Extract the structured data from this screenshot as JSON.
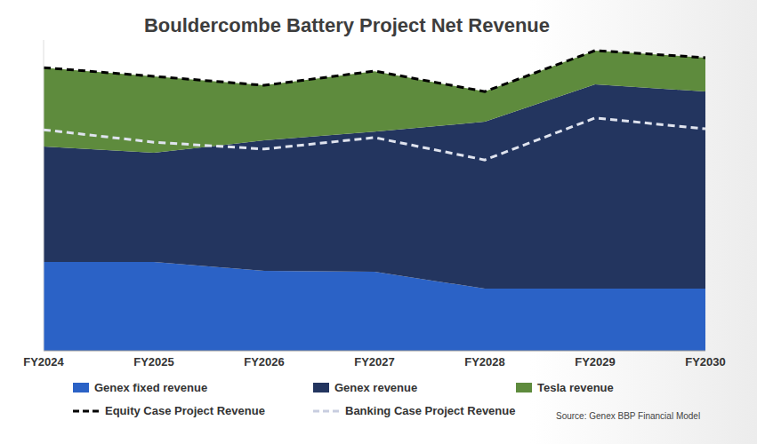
{
  "chart_data": {
    "type": "area",
    "title": "Bouldercombe Battery Project Net Revenue",
    "source": "Source: Genex BBP Financial Model",
    "categories": [
      "FY2024",
      "FY2025",
      "FY2026",
      "FY2027",
      "FY2028",
      "FY2029",
      "FY2030"
    ],
    "series": [
      {
        "name": "Genex fixed revenue",
        "type": "area",
        "color": "#2b62c6",
        "values": [
          28.6,
          28.6,
          25.7,
          25.4,
          20,
          20,
          20
        ]
      },
      {
        "name": "Genex revenue",
        "type": "area",
        "color": "#23355f",
        "values": [
          37.1,
          35.1,
          42,
          45.1,
          53.7,
          65.7,
          63.4
        ]
      },
      {
        "name": "Tesla revenue",
        "type": "area",
        "color": "#5e8b3d",
        "values": [
          25.4,
          24.6,
          17.7,
          19.4,
          9.7,
          10.9,
          10.9
        ]
      },
      {
        "name": "Equity Case Project Revenue",
        "type": "line",
        "line_style": "dashed",
        "color": "#000000",
        "values": [
          91.1,
          88.3,
          85.4,
          90,
          83.4,
          96.6,
          94.3
        ]
      },
      {
        "name": "Banking Case Project Revenue",
        "type": "line",
        "line_style": "dashed",
        "color": "#dfe3ee",
        "values": [
          71.1,
          67.1,
          64.9,
          68.6,
          61.4,
          74.9,
          71.4
        ]
      }
    ],
    "ylim": [
      0,
      100
    ],
    "stacked": true,
    "tick_labels": "x"
  }
}
